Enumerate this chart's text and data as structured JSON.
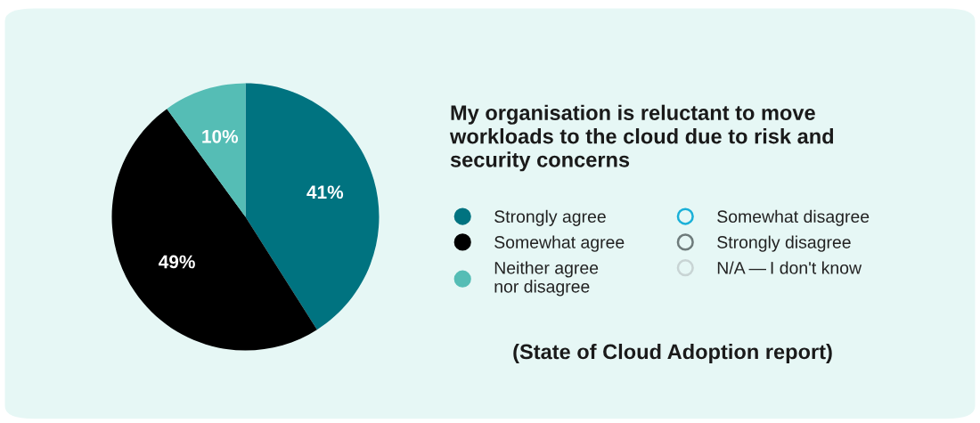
{
  "chart_data": {
    "type": "pie",
    "title": "My organisation is reluctant to move\nworkloads to the cloud due to risk and\nsecurity concerns",
    "categories": [
      "Strongly agree",
      "Somewhat agree",
      "Neither agree\nnor disagree",
      "Somewhat disagree",
      "Strongly disagree",
      "N/A — I don't know"
    ],
    "values": [
      41,
      49,
      10,
      0,
      0,
      0
    ],
    "colors": [
      "#007380",
      "#000000",
      "#55bdb5",
      "#1ab0d8",
      "#6e7b7b",
      "#c8d4d4"
    ],
    "value_labels": [
      "41%",
      "49%",
      "10%",
      null,
      null,
      null
    ],
    "legend": "right",
    "annotations": [
      "(State of Cloud Adoption report)"
    ]
  }
}
